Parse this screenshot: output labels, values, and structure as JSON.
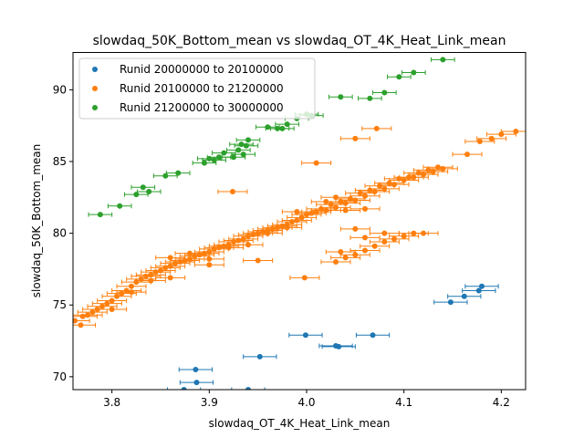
{
  "chart_data": {
    "type": "scatter",
    "title": "slowdaq_50K_Bottom_mean vs slowdaq_OT_4K_Heat_Link_mean",
    "xlabel": "slowdaq_OT_4K_Heat_Link_mean",
    "ylabel": "slowdaq_50K_Bottom_mean",
    "xlim": [
      3.76,
      4.225
    ],
    "ylim": [
      69.1,
      92.6
    ],
    "xticks": [
      3.8,
      3.9,
      4.0,
      4.1,
      4.2
    ],
    "xtick_labels": [
      "3.8",
      "3.9",
      "4.0",
      "4.1",
      "4.2"
    ],
    "yticks": [
      70,
      75,
      80,
      85,
      90
    ],
    "ytick_labels": [
      "70",
      "75",
      "80",
      "85",
      "90"
    ],
    "grid": false,
    "legend_position": "top-left",
    "error_bars": "horizontal",
    "series": [
      {
        "name": "Runid 20000000 to 20100000",
        "color": "#1f77b4",
        "xerr": 0.017,
        "points": [
          [
            4.18,
            76.3
          ],
          [
            4.177,
            76.0
          ],
          [
            4.162,
            75.6
          ],
          [
            4.148,
            75.2
          ],
          [
            4.068,
            72.9
          ],
          [
            4.033,
            72.1
          ],
          [
            4.03,
            72.15
          ],
          [
            3.999,
            72.9
          ],
          [
            3.952,
            71.4
          ],
          [
            3.886,
            70.5
          ],
          [
            3.887,
            69.6
          ],
          [
            3.874,
            69.1
          ],
          [
            3.94,
            69.1
          ]
        ]
      },
      {
        "name": "Runid 20100000 to 21200000",
        "color": "#ff7f0e",
        "xerr": 0.015,
        "points": [
          [
            4.215,
            87.1
          ],
          [
            4.2,
            86.9
          ],
          [
            4.19,
            86.6
          ],
          [
            4.178,
            86.4
          ],
          [
            4.165,
            85.5
          ],
          [
            4.072,
            87.3
          ],
          [
            4.05,
            86.6
          ],
          [
            4.01,
            84.9
          ],
          [
            3.924,
            82.9
          ],
          [
            4.14,
            84.5
          ],
          [
            4.13,
            84.3
          ],
          [
            4.12,
            84.1
          ],
          [
            4.11,
            83.9
          ],
          [
            4.1,
            83.7
          ],
          [
            4.09,
            83.4
          ],
          [
            4.08,
            83.1
          ],
          [
            4.07,
            82.9
          ],
          [
            4.06,
            82.6
          ],
          [
            4.05,
            82.3
          ],
          [
            4.04,
            82.1
          ],
          [
            4.03,
            81.8
          ],
          [
            4.02,
            81.6
          ],
          [
            4.01,
            81.5
          ],
          [
            4.0,
            81.3
          ],
          [
            3.99,
            80.9
          ],
          [
            3.98,
            80.6
          ],
          [
            3.97,
            80.4
          ],
          [
            3.96,
            80.2
          ],
          [
            3.95,
            80.0
          ],
          [
            3.94,
            79.8
          ],
          [
            3.93,
            79.5
          ],
          [
            3.92,
            79.2
          ],
          [
            3.91,
            79.0
          ],
          [
            3.9,
            78.7
          ],
          [
            3.89,
            78.5
          ],
          [
            3.88,
            78.2
          ],
          [
            3.87,
            78.0
          ],
          [
            3.86,
            77.7
          ],
          [
            3.85,
            77.4
          ],
          [
            3.84,
            77.1
          ],
          [
            3.83,
            76.8
          ],
          [
            3.82,
            76.3
          ],
          [
            3.81,
            75.8
          ],
          [
            3.8,
            75.3
          ],
          [
            3.79,
            74.9
          ],
          [
            3.78,
            74.5
          ],
          [
            3.77,
            74.2
          ],
          [
            3.762,
            73.9
          ],
          [
            3.768,
            73.6
          ],
          [
            3.775,
            74.3
          ],
          [
            3.785,
            74.7
          ],
          [
            3.795,
            75.1
          ],
          [
            3.805,
            75.6
          ],
          [
            3.815,
            76.0
          ],
          [
            3.825,
            76.6
          ],
          [
            3.835,
            77.0
          ],
          [
            3.845,
            77.3
          ],
          [
            3.855,
            77.6
          ],
          [
            3.865,
            77.9
          ],
          [
            3.875,
            78.1
          ],
          [
            3.885,
            78.4
          ],
          [
            3.895,
            78.6
          ],
          [
            3.905,
            78.9
          ],
          [
            3.915,
            79.1
          ],
          [
            3.925,
            79.4
          ],
          [
            3.935,
            79.6
          ],
          [
            3.945,
            79.9
          ],
          [
            3.955,
            80.1
          ],
          [
            3.965,
            80.3
          ],
          [
            3.975,
            80.5
          ],
          [
            3.985,
            80.8
          ],
          [
            3.995,
            81.1
          ],
          [
            4.005,
            81.4
          ],
          [
            4.015,
            81.7
          ],
          [
            4.025,
            82.0
          ],
          [
            4.035,
            82.2
          ],
          [
            4.045,
            82.4
          ],
          [
            4.055,
            82.8
          ],
          [
            4.065,
            83.0
          ],
          [
            4.075,
            83.3
          ],
          [
            4.085,
            83.5
          ],
          [
            4.095,
            83.8
          ],
          [
            4.105,
            83.9
          ],
          [
            4.115,
            84.2
          ],
          [
            4.125,
            84.4
          ],
          [
            4.135,
            84.6
          ],
          [
            4.02,
            82.2
          ],
          [
            4.03,
            82.5
          ],
          [
            4.04,
            81.6
          ],
          [
            4.06,
            81.7
          ],
          [
            3.99,
            81.5
          ],
          [
            3.98,
            80.4
          ],
          [
            3.96,
            80.0
          ],
          [
            3.94,
            79.2
          ],
          [
            3.92,
            79.0
          ],
          [
            3.9,
            78.2
          ],
          [
            3.88,
            78.6
          ],
          [
            3.86,
            78.3
          ],
          [
            3.84,
            76.7
          ],
          [
            3.82,
            75.9
          ],
          [
            3.8,
            74.7
          ],
          [
            4.11,
            80.0
          ],
          [
            4.1,
            79.8
          ],
          [
            4.09,
            79.6
          ],
          [
            4.08,
            79.4
          ],
          [
            4.07,
            79.1
          ],
          [
            4.06,
            78.8
          ],
          [
            4.05,
            78.5
          ],
          [
            4.04,
            78.3
          ],
          [
            4.03,
            78.0
          ],
          [
            4.12,
            80.0
          ],
          [
            4.08,
            80.0
          ],
          [
            4.05,
            80.3
          ],
          [
            4.06,
            79.7
          ],
          [
            4.035,
            78.7
          ],
          [
            3.998,
            76.9
          ],
          [
            3.95,
            78.1
          ],
          [
            3.9,
            77.8
          ],
          [
            3.86,
            76.9
          ]
        ]
      },
      {
        "name": "Runid 21200000 to 30000000",
        "color": "#2ca02c",
        "xerr": 0.012,
        "points": [
          [
            4.14,
            92.1
          ],
          [
            4.11,
            91.2
          ],
          [
            4.095,
            90.9
          ],
          [
            4.08,
            89.8
          ],
          [
            4.065,
            89.4
          ],
          [
            4.035,
            89.5
          ],
          [
            4.0,
            88.3
          ],
          [
            4.005,
            88.2
          ],
          [
            3.99,
            88.0
          ],
          [
            3.98,
            87.6
          ],
          [
            3.975,
            87.3
          ],
          [
            3.97,
            87.3
          ],
          [
            3.96,
            87.4
          ],
          [
            3.94,
            86.5
          ],
          [
            3.938,
            86.1
          ],
          [
            3.933,
            86.2
          ],
          [
            3.93,
            85.8
          ],
          [
            3.915,
            85.6
          ],
          [
            3.91,
            85.3
          ],
          [
            3.905,
            85.1
          ],
          [
            3.9,
            85.2
          ],
          [
            3.895,
            84.9
          ],
          [
            3.935,
            85.5
          ],
          [
            3.925,
            85.3
          ],
          [
            3.868,
            84.2
          ],
          [
            3.855,
            84.0
          ],
          [
            3.832,
            83.2
          ],
          [
            3.838,
            82.9
          ],
          [
            3.825,
            82.7
          ],
          [
            3.808,
            81.9
          ],
          [
            3.788,
            81.3
          ]
        ]
      }
    ]
  }
}
